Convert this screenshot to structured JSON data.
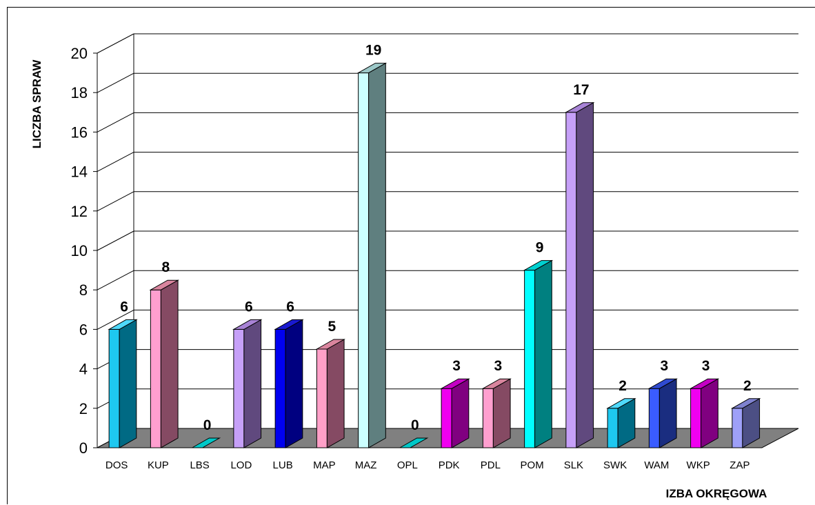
{
  "chart_data": {
    "type": "bar",
    "xlabel": "IZBA OKRĘGOWA",
    "ylabel": "LICZBA SPRAW",
    "ylim": [
      0,
      20
    ],
    "yticks": [
      0,
      2,
      4,
      6,
      8,
      10,
      12,
      14,
      16,
      18,
      20
    ],
    "grid": true,
    "three_d": true,
    "categories": [
      "DOS",
      "KUP",
      "LBS",
      "LOD",
      "LUB",
      "MAP",
      "MAZ",
      "OPL",
      "PDK",
      "PDL",
      "POM",
      "SLK",
      "SWK",
      "WAM",
      "WKP",
      "ZAP"
    ],
    "values": [
      6,
      8,
      0,
      6,
      6,
      5,
      19,
      0,
      3,
      3,
      9,
      17,
      2,
      3,
      3,
      2
    ],
    "colors": [
      {
        "front": "#1ec8f0",
        "side": "#006a84",
        "top": "#4fd9fb"
      },
      {
        "front": "#ff9fcf",
        "side": "#854a63",
        "top": "#d9859e"
      },
      {
        "front": "#00c8c8",
        "side": "#00a0a0",
        "top": "#00d6d6"
      },
      {
        "front": "#c6a0f8",
        "side": "#60497e",
        "top": "#a883d6"
      },
      {
        "front": "#0000f0",
        "side": "#000080",
        "top": "#1a1ad0"
      },
      {
        "front": "#ffa0c8",
        "side": "#854a63",
        "top": "#d9859e"
      },
      {
        "front": "#ccffff",
        "side": "#5f7f7f",
        "top": "#9cc8c8"
      },
      {
        "front": "#00c8c8",
        "side": "#00a0a0",
        "top": "#00d6d6"
      },
      {
        "front": "#f000f0",
        "side": "#800080",
        "top": "#c400c4"
      },
      {
        "front": "#ff9fcf",
        "side": "#854a63",
        "top": "#d9859e"
      },
      {
        "front": "#00ffff",
        "side": "#008080",
        "top": "#00d0d0"
      },
      {
        "front": "#c6a0f8",
        "side": "#60497e",
        "top": "#a883d6"
      },
      {
        "front": "#1ec8f0",
        "side": "#006a84",
        "top": "#4fd9fb"
      },
      {
        "front": "#3a5cff",
        "side": "#1a2d80",
        "top": "#2f4ad0"
      },
      {
        "front": "#f000f0",
        "side": "#800080",
        "top": "#c400c4"
      },
      {
        "front": "#9ea0f8",
        "side": "#4c4f84",
        "top": "#7f82cf"
      }
    ],
    "floor_color": "#808080"
  }
}
